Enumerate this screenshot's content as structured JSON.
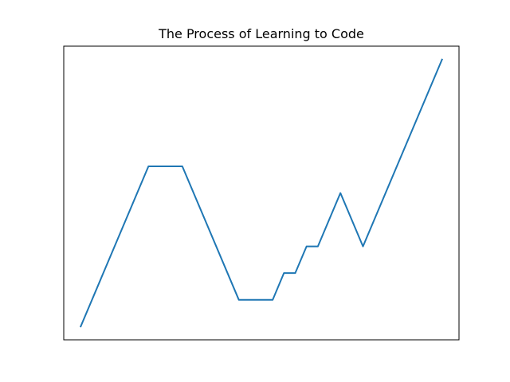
{
  "chart_data": {
    "type": "line",
    "title": "The Process of Learning to Code",
    "xlabel": "",
    "ylabel": "",
    "axes_visible": false,
    "grid": false,
    "xlim": [
      -0.75,
      16.75
    ],
    "ylim": [
      -0.5,
      10.5
    ],
    "series": [
      {
        "color": "#1f77b4",
        "x": [
          0,
          3,
          4.5,
          7,
          8.5,
          9,
          9.5,
          10,
          10.5,
          11.5,
          12.5,
          16
        ],
        "y": [
          0,
          6,
          6,
          1,
          1,
          2,
          2,
          3,
          3,
          5,
          3,
          10
        ]
      }
    ]
  }
}
